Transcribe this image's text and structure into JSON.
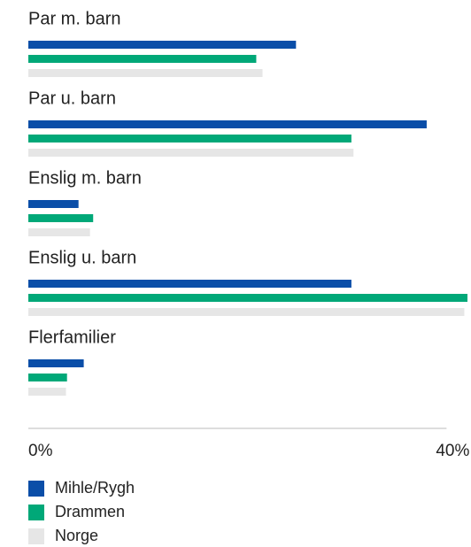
{
  "chart_data": {
    "type": "bar",
    "orientation": "horizontal",
    "categories": [
      "Par m. barn",
      "Par u. barn",
      "Enslig m. barn",
      "Enslig u. barn",
      "Flerfamilier"
    ],
    "series": [
      {
        "name": "Mihle/Rygh",
        "color": "#0a4ea8",
        "values": [
          25.6,
          38.1,
          4.8,
          30.9,
          5.3
        ]
      },
      {
        "name": "Drammen",
        "color": "#00a878",
        "values": [
          21.8,
          30.9,
          6.2,
          42.0,
          3.7
        ]
      },
      {
        "name": "Norge",
        "color": "#e6e6e6",
        "values": [
          22.4,
          31.1,
          5.9,
          41.7,
          3.6
        ]
      }
    ],
    "xlim": [
      0,
      42
    ],
    "xticks": [
      {
        "value": 0,
        "label": "0%"
      },
      {
        "value": 40,
        "label": "40%"
      }
    ]
  }
}
